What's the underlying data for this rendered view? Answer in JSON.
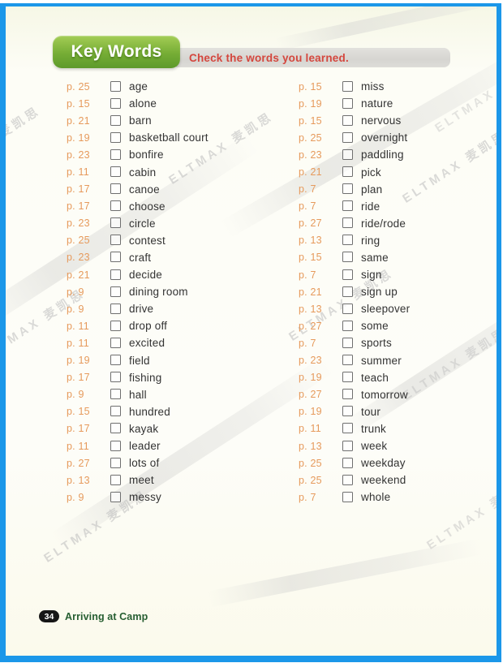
{
  "header": {
    "title": "Key Words",
    "instruction": "Check the words you learned."
  },
  "columns": {
    "left": [
      {
        "page": "p. 25",
        "word": "age"
      },
      {
        "page": "p. 15",
        "word": "alone"
      },
      {
        "page": "p. 21",
        "word": "barn"
      },
      {
        "page": "p. 19",
        "word": "basketball court"
      },
      {
        "page": "p. 23",
        "word": "bonfire"
      },
      {
        "page": "p. 11",
        "word": "cabin"
      },
      {
        "page": "p. 17",
        "word": "canoe"
      },
      {
        "page": "p. 17",
        "word": "choose"
      },
      {
        "page": "p. 23",
        "word": "circle"
      },
      {
        "page": "p. 25",
        "word": "contest"
      },
      {
        "page": "p. 23",
        "word": "craft"
      },
      {
        "page": "p. 21",
        "word": "decide"
      },
      {
        "page": "p. 9",
        "word": "dining room"
      },
      {
        "page": "p. 9",
        "word": "drive"
      },
      {
        "page": "p. 11",
        "word": "drop off"
      },
      {
        "page": "p. 11",
        "word": "excited"
      },
      {
        "page": "p. 19",
        "word": "field"
      },
      {
        "page": "p. 17",
        "word": "fishing"
      },
      {
        "page": "p. 9",
        "word": "hall"
      },
      {
        "page": "p. 15",
        "word": "hundred"
      },
      {
        "page": "p. 17",
        "word": "kayak"
      },
      {
        "page": "p. 11",
        "word": "leader"
      },
      {
        "page": "p. 27",
        "word": "lots of"
      },
      {
        "page": "p. 13",
        "word": "meet"
      },
      {
        "page": "p. 9",
        "word": "messy"
      }
    ],
    "right": [
      {
        "page": "p. 15",
        "word": "miss"
      },
      {
        "page": "p. 19",
        "word": "nature"
      },
      {
        "page": "p. 15",
        "word": "nervous"
      },
      {
        "page": "p. 25",
        "word": "overnight"
      },
      {
        "page": "p. 23",
        "word": "paddling"
      },
      {
        "page": "p. 21",
        "word": "pick"
      },
      {
        "page": "p. 7",
        "word": "plan"
      },
      {
        "page": "p. 7",
        "word": "ride"
      },
      {
        "page": "p. 27",
        "word": "ride/rode"
      },
      {
        "page": "p. 13",
        "word": "ring"
      },
      {
        "page": "p. 15",
        "word": "same"
      },
      {
        "page": "p. 7",
        "word": "sign"
      },
      {
        "page": "p. 21",
        "word": "sign up"
      },
      {
        "page": "p. 13",
        "word": "sleepover"
      },
      {
        "page": "p. 27",
        "word": "some"
      },
      {
        "page": "p. 7",
        "word": "sports"
      },
      {
        "page": "p. 23",
        "word": "summer"
      },
      {
        "page": "p. 19",
        "word": "teach"
      },
      {
        "page": "p. 27",
        "word": "tomorrow"
      },
      {
        "page": "p. 19",
        "word": "tour"
      },
      {
        "page": "p. 11",
        "word": "trunk"
      },
      {
        "page": "p. 13",
        "word": "week"
      },
      {
        "page": "p. 25",
        "word": "weekday"
      },
      {
        "page": "p. 25",
        "word": "weekend"
      },
      {
        "page": "p. 7",
        "word": "whole"
      }
    ]
  },
  "footer": {
    "page_number": "34",
    "lesson_title": "Arriving at Camp"
  },
  "watermark": {
    "text": "ELTMAX 麦凯思"
  },
  "colors": {
    "frame_blue": "#1b97e9",
    "tab_green_top": "#a3cd55",
    "tab_green_bottom": "#5d9a2b",
    "instruction_red": "#d4473e",
    "page_ref_orange": "#e69a5c",
    "footer_green": "#265e31",
    "page_cream": "#fdfdf6"
  }
}
